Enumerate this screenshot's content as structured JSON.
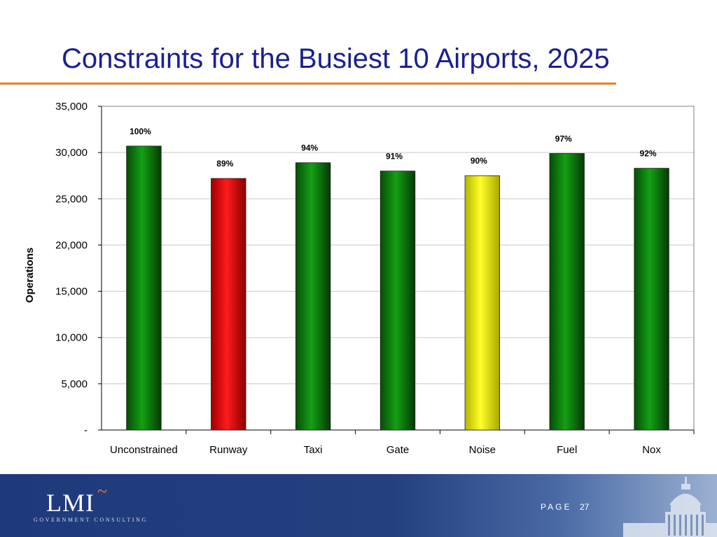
{
  "slide": {
    "title": "Constraints for the Busiest 10 Airports, 2025"
  },
  "footer": {
    "logo_text": "LMI",
    "logo_accent": "~",
    "logo_subtitle": "GOVERNMENT CONSULTING",
    "page_label": "PAGE",
    "page_number": "27"
  },
  "colors": {
    "title": "#1a1f8f",
    "rule": "#e8801f",
    "footer": "#24407f",
    "green": "#0a7a0a",
    "red": "#ff0000",
    "yellow": "#ffff00"
  },
  "chart_data": {
    "type": "bar",
    "title": "",
    "xlabel": "",
    "ylabel": "Operations",
    "ylim": [
      0,
      35000
    ],
    "yticks": [
      "-",
      "5,000",
      "10,000",
      "15,000",
      "20,000",
      "25,000",
      "30,000",
      "35,000"
    ],
    "grid": true,
    "legend": "none",
    "categories": [
      "Unconstrained",
      "Runway",
      "Taxi",
      "Gate",
      "Noise",
      "Fuel",
      "Nox"
    ],
    "values": [
      30700,
      27200,
      28900,
      28000,
      27500,
      29900,
      28300
    ],
    "data_labels": [
      "100%",
      "89%",
      "94%",
      "91%",
      "90%",
      "97%",
      "92%"
    ],
    "bar_colors": [
      "green",
      "red",
      "green",
      "green",
      "yellow",
      "green",
      "green"
    ]
  }
}
